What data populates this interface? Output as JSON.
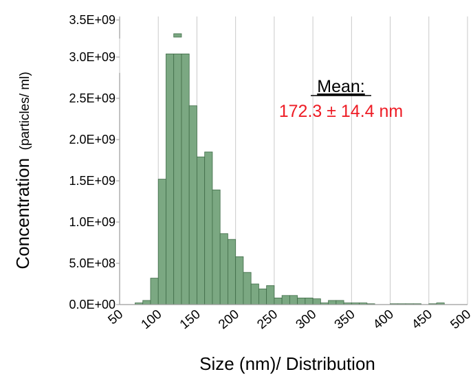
{
  "chart_data": {
    "type": "bar",
    "xlabel": "Size (nm)/ Distribution",
    "ylabel": "Concentration (particles/ ml)",
    "ylabel_main": "Concentration",
    "ylabel_sub": "(particles/ ml)",
    "annotation_title": "Mean:",
    "annotation_value": "172.3 ± 14.4 nm",
    "xlim": [
      50,
      500
    ],
    "ylim": [
      0,
      3500000000
    ],
    "axis_break": true,
    "bin_width": 10,
    "x_ticks": [
      "50",
      "100",
      "150",
      "200",
      "250",
      "300",
      "350",
      "400",
      "450",
      "500"
    ],
    "y_ticks": [
      "0.0E+00",
      "5.0E+08",
      "1.0E+09",
      "1.5E+09",
      "2.0E+09",
      "2.5E+09",
      "3.0E+09",
      "3.5E+09"
    ],
    "bins": [
      {
        "x": 70,
        "y": 20000000
      },
      {
        "x": 80,
        "y": 50000000
      },
      {
        "x": 90,
        "y": 320000000
      },
      {
        "x": 100,
        "y": 1520000000
      },
      {
        "x": 110,
        "y": 3300000000
      },
      {
        "x": 120,
        "y": 3300000000
      },
      {
        "x": 130,
        "y": 3300000000
      },
      {
        "x": 140,
        "y": 2410000000
      },
      {
        "x": 150,
        "y": 1790000000
      },
      {
        "x": 160,
        "y": 1850000000
      },
      {
        "x": 170,
        "y": 1390000000
      },
      {
        "x": 180,
        "y": 860000000
      },
      {
        "x": 190,
        "y": 790000000
      },
      {
        "x": 200,
        "y": 580000000
      },
      {
        "x": 210,
        "y": 390000000
      },
      {
        "x": 220,
        "y": 250000000
      },
      {
        "x": 230,
        "y": 190000000
      },
      {
        "x": 240,
        "y": 230000000
      },
      {
        "x": 250,
        "y": 80000000
      },
      {
        "x": 260,
        "y": 110000000
      },
      {
        "x": 270,
        "y": 110000000
      },
      {
        "x": 280,
        "y": 80000000
      },
      {
        "x": 290,
        "y": 80000000
      },
      {
        "x": 300,
        "y": 70000000
      },
      {
        "x": 310,
        "y": 20000000
      },
      {
        "x": 320,
        "y": 50000000
      },
      {
        "x": 330,
        "y": 50000000
      },
      {
        "x": 340,
        "y": 20000000
      },
      {
        "x": 350,
        "y": 20000000
      },
      {
        "x": 360,
        "y": 20000000
      },
      {
        "x": 370,
        "y": 10000000
      },
      {
        "x": 400,
        "y": 10000000
      },
      {
        "x": 410,
        "y": 10000000
      },
      {
        "x": 420,
        "y": 10000000
      },
      {
        "x": 430,
        "y": 10000000
      },
      {
        "x": 450,
        "y": 10000000
      },
      {
        "x": 460,
        "y": 20000000
      }
    ],
    "colors": {
      "bar_fill": "#7ba882",
      "bar_stroke": "#3f6b47",
      "grid": "#c8c8c8",
      "axis": "#9a9a9a",
      "annotation": "#ee1c25",
      "text": "#000000"
    },
    "grid": true
  }
}
